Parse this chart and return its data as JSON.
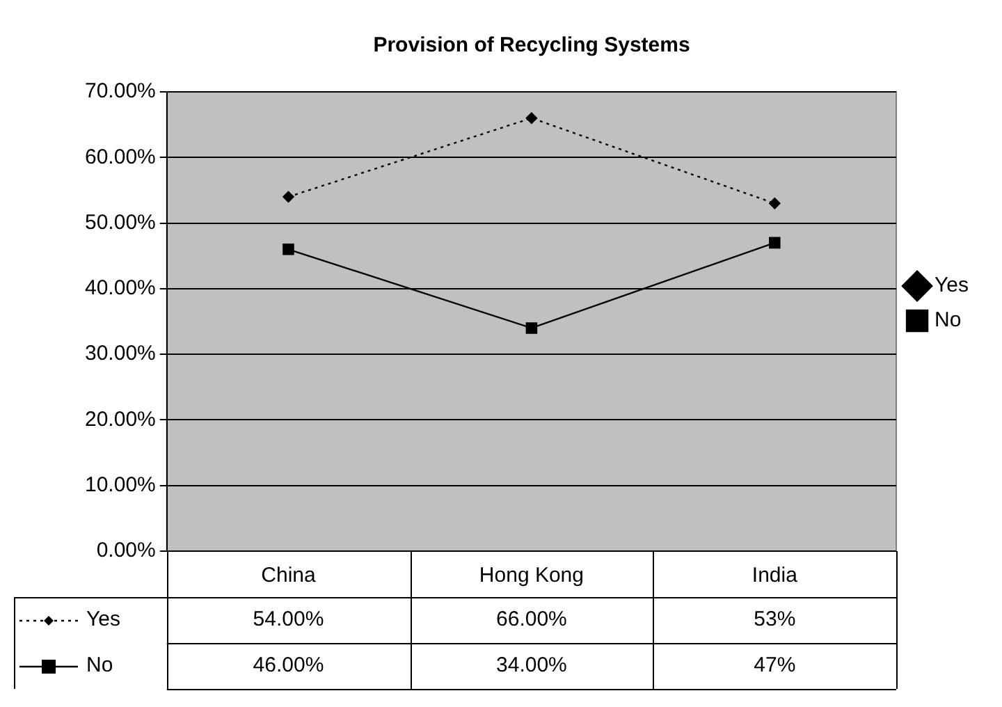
{
  "chart_data": {
    "type": "line",
    "title": "Provision of Recycling Systems",
    "categories": [
      "China",
      "Hong Kong",
      "India"
    ],
    "series": [
      {
        "name": "Yes",
        "color": "#000000",
        "values": [
          54,
          66,
          53
        ],
        "value_labels": [
          "54.00%",
          "66.00%",
          "53%"
        ],
        "marker": "diamond",
        "line_style": "dotted"
      },
      {
        "name": "No",
        "color": "#000000",
        "values": [
          46,
          34,
          47
        ],
        "value_labels": [
          "46.00%",
          "34.00%",
          "47%"
        ],
        "marker": "square",
        "line_style": "solid"
      }
    ],
    "ylim": [
      0,
      70
    ],
    "yticks": [
      {
        "value": 0,
        "label": "0.00%"
      },
      {
        "value": 10,
        "label": "10.00%"
      },
      {
        "value": 20,
        "label": "20.00%"
      },
      {
        "value": 30,
        "label": "30.00%"
      },
      {
        "value": 40,
        "label": "40.00%"
      },
      {
        "value": 50,
        "label": "50.00%"
      },
      {
        "value": 60,
        "label": "60.00%"
      },
      {
        "value": 70,
        "label": "70.00%"
      }
    ],
    "grid": "y",
    "legend": "right"
  }
}
